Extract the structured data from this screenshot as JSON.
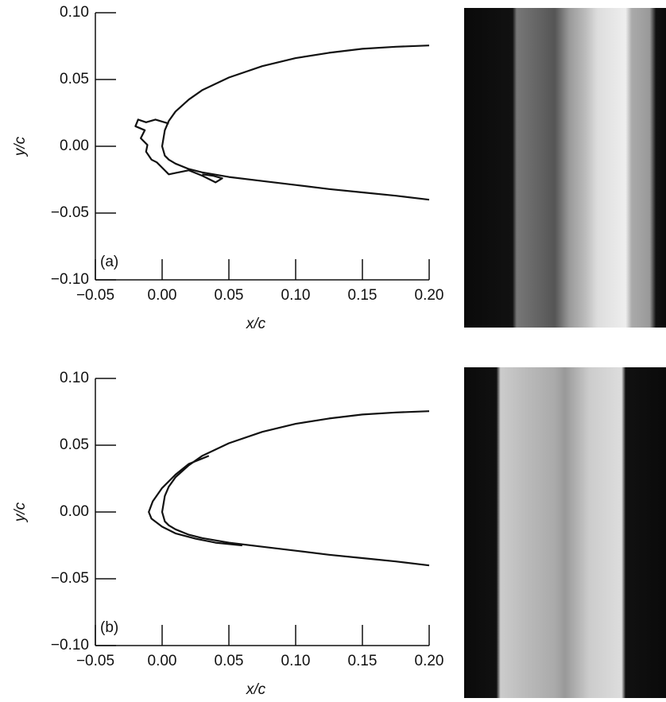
{
  "chart_data": [
    {
      "type": "line",
      "xlabel": "x/c",
      "ylabel": "y/c",
      "annotation": "(a)",
      "xlim": [
        -0.05,
        0.2
      ],
      "ylim": [
        -0.1,
        0.1
      ],
      "xticks": [
        {
          "value": -0.05,
          "label": "−0.05"
        },
        {
          "value": 0,
          "label": "0.00"
        },
        {
          "value": 0.05,
          "label": "0.05"
        },
        {
          "value": 0.1,
          "label": "0.10"
        },
        {
          "value": 0.15,
          "label": "0.15"
        },
        {
          "value": 0.2,
          "label": "0.20"
        }
      ],
      "yticks": [
        {
          "value": -0.1,
          "label": "−0.10"
        },
        {
          "value": -0.05,
          "label": "−0.05"
        },
        {
          "value": 0,
          "label": "0.00"
        },
        {
          "value": 0.05,
          "label": "0.05"
        },
        {
          "value": 0.1,
          "label": "0.10"
        }
      ],
      "series": [
        {
          "color": "#111111",
          "x": [
            0.2,
            0.175,
            0.15,
            0.125,
            0.1,
            0.075,
            0.05,
            0.03,
            0.02,
            0.01,
            0.005,
            0.002,
            0,
            0.002,
            0.005,
            0.01,
            0.02,
            0.03,
            0.05,
            0.075,
            0.1,
            0.125,
            0.15,
            0.175,
            0.2
          ],
          "values": [
            0.0755,
            0.0745,
            0.073,
            0.07,
            0.066,
            0.06,
            0.0515,
            0.042,
            0.035,
            0.026,
            0.019,
            0.012,
            0,
            -0.007,
            -0.01,
            -0.013,
            -0.017,
            -0.0195,
            -0.023,
            -0.026,
            -0.029,
            -0.032,
            -0.0345,
            -0.037,
            -0.04
          ]
        },
        {
          "color": "#111111",
          "x": [
            0.005,
            -0.005,
            -0.012,
            -0.018,
            -0.02,
            -0.013,
            -0.016,
            -0.011,
            -0.012,
            -0.008,
            -0.004,
            0.0,
            0.005,
            0.01,
            0.02,
            0.03,
            0.04,
            0.045,
            0.038,
            0.03
          ],
          "values": [
            0.017,
            0.02,
            0.018,
            0.02,
            0.015,
            0.012,
            0.006,
            0.001,
            -0.004,
            -0.01,
            -0.012,
            -0.016,
            -0.021,
            -0.02,
            -0.018,
            -0.022,
            -0.027,
            -0.024,
            -0.022,
            -0.021
          ]
        }
      ]
    },
    {
      "type": "line",
      "xlabel": "x/c",
      "ylabel": "y/c",
      "annotation": "(b)",
      "xlim": [
        -0.05,
        0.2
      ],
      "ylim": [
        -0.1,
        0.1
      ],
      "xticks": [
        {
          "value": -0.05,
          "label": "−0.05"
        },
        {
          "value": 0,
          "label": "0.00"
        },
        {
          "value": 0.05,
          "label": "0.05"
        },
        {
          "value": 0.1,
          "label": "0.10"
        },
        {
          "value": 0.15,
          "label": "0.15"
        },
        {
          "value": 0.2,
          "label": "0.20"
        }
      ],
      "yticks": [
        {
          "value": -0.1,
          "label": "−0.10"
        },
        {
          "value": -0.05,
          "label": "−0.05"
        },
        {
          "value": 0,
          "label": "0.00"
        },
        {
          "value": 0.05,
          "label": "0.05"
        },
        {
          "value": 0.1,
          "label": "0.10"
        }
      ],
      "series": [
        {
          "color": "#111111",
          "x": [
            0.2,
            0.175,
            0.15,
            0.125,
            0.1,
            0.075,
            0.05,
            0.03,
            0.02,
            0.01,
            0.005,
            0.002,
            0,
            0.002,
            0.005,
            0.01,
            0.02,
            0.03,
            0.05,
            0.075,
            0.1,
            0.125,
            0.15,
            0.175,
            0.2
          ],
          "values": [
            0.0755,
            0.0745,
            0.073,
            0.07,
            0.066,
            0.06,
            0.0515,
            0.042,
            0.035,
            0.026,
            0.019,
            0.012,
            0,
            -0.007,
            -0.01,
            -0.013,
            -0.017,
            -0.0195,
            -0.023,
            -0.026,
            -0.029,
            -0.032,
            -0.0345,
            -0.037,
            -0.04
          ]
        },
        {
          "color": "#111111",
          "x": [
            0.035,
            0.02,
            0.01,
            0.0,
            -0.007,
            -0.01,
            -0.008,
            0.0,
            0.01,
            0.025,
            0.04,
            0.06
          ],
          "values": [
            0.042,
            0.036,
            0.028,
            0.018,
            0.008,
            0.0,
            -0.005,
            -0.011,
            -0.016,
            -0.02,
            -0.023,
            -0.025
          ]
        }
      ]
    }
  ]
}
